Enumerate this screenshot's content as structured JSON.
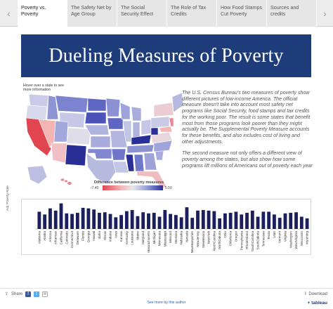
{
  "tabs": [
    {
      "label": "Poverty vs. Poverty",
      "active": true
    },
    {
      "label": "The Safety Net by Age Group",
      "active": false
    },
    {
      "label": "The Social Security Effect",
      "active": false
    },
    {
      "label": "The Role of Tax Credits",
      "active": false
    },
    {
      "label": "How Food Stamps Cut Poverty",
      "active": false
    },
    {
      "label": "Sources and credits",
      "active": false
    }
  ],
  "banner": {
    "title": "Dueling Measures of Poverty"
  },
  "map": {
    "hover_hint": "Hover over a state to see more information",
    "legend_title": "Difference between poverty measures",
    "legend_min": "-7.40",
    "legend_max": "5.50",
    "colors": {
      "neg": "#e04550",
      "neutral": "#e6e6e6",
      "pos": "#2a2f98"
    }
  },
  "text": {
    "p1": "The U.S. Census Bureau's two measures of poverty show different pictures of low-income America. The official measure doesn't take into account most safety net programs like Social Security, food stamps and tax credits for the working poor. The result is some states that benefit most from those programs look poorer than they might actually be. The Supplemental Poverty Measure accounts for these benefits, and also includes cost of living and other adjustments.",
    "p2": "The second measure not only offers a different view of poverty among the states, but also show how some programs lift millions of Americans out of poverty each year"
  },
  "chart_data": {
    "type": "bar",
    "ylabel": "Adj. Poverty Rate",
    "color": "#1b1f5e",
    "categories": [
      "Alabama",
      "Alaska",
      "Arizona",
      "Arkansas",
      "California",
      "Colorado",
      "Connecticut",
      "Delaware",
      "Florida",
      "Georgia",
      "Hawaii",
      "Idaho",
      "Illinois",
      "Indiana",
      "Iowa",
      "Kansas",
      "Kentucky",
      "Louisiana",
      "Maine",
      "Maryland",
      "Massachusetts",
      "Michigan",
      "Minnesota",
      "Mississippi",
      "Missouri",
      "Montana",
      "Nebraska",
      "Nevada",
      "NewHampshire",
      "NewJersey",
      "NewMexico",
      "NewYork",
      "NorthCarolina",
      "NorthDakota",
      "Ohio",
      "Oklahoma",
      "Oregon",
      "Pennsylvania",
      "RhodeIsland",
      "SouthCarolina",
      "SouthDakota",
      "Tennessee",
      "Texas",
      "Utah",
      "Vermont",
      "Virginia",
      "Washington",
      "WestVirginia",
      "Wisconsin",
      "Wyoming"
    ],
    "values": [
      15.5,
      13.0,
      18.5,
      16.5,
      23.0,
      14.0,
      13.5,
      14.5,
      19.0,
      18.5,
      17.5,
      14.5,
      15.0,
      13.5,
      10.5,
      12.5,
      16.0,
      17.0,
      11.5,
      15.0,
      14.0,
      14.5,
      11.0,
      17.0,
      13.5,
      12.5,
      10.5,
      19.5,
      10.0,
      16.5,
      17.0,
      16.5,
      16.0,
      9.5,
      14.0,
      14.5,
      15.5,
      13.0,
      14.5,
      16.5,
      11.0,
      15.5,
      15.5,
      13.0,
      10.0,
      14.0,
      14.5,
      15.0,
      11.0,
      9.5
    ],
    "ylim": [
      0,
      24
    ]
  },
  "footer": {
    "share_label": "Share",
    "download_label": "Download",
    "more_link": "See more by this author",
    "brand": "+ tableau"
  },
  "icons": {
    "prev": "chevron-left-icon",
    "next": "chevron-right-icon",
    "facebook": "facebook-icon",
    "twitter": "twitter-icon",
    "email": "email-icon",
    "share": "share-icon",
    "download": "download-icon"
  }
}
